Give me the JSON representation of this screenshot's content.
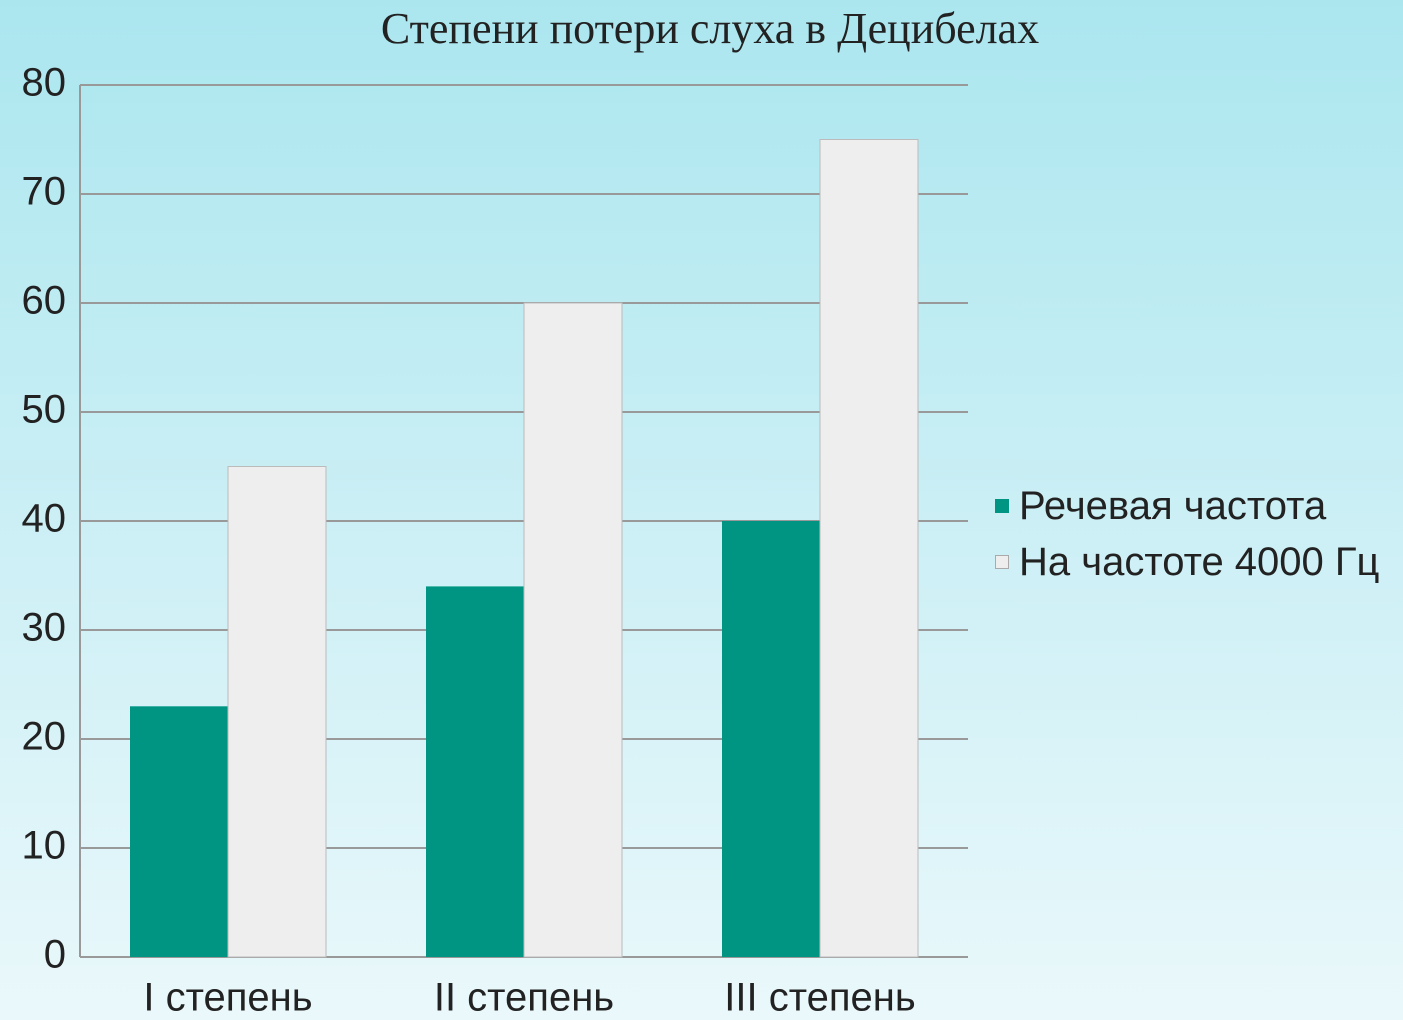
{
  "chart_data": {
    "type": "bar",
    "title": "Степени потери слуха  в Децибелах",
    "categories": [
      "I степень",
      "II степень",
      "III степень"
    ],
    "series": [
      {
        "name": "Речевая частота",
        "color": "#009583",
        "values": [
          23,
          34,
          40
        ]
      },
      {
        "name": "На частоте 4000 Гц",
        "color": "#eeeeee",
        "values": [
          45,
          60,
          75
        ]
      }
    ],
    "ylim": [
      0,
      80
    ],
    "yticks": [
      0,
      10,
      20,
      30,
      40,
      50,
      60,
      70,
      80
    ],
    "grid": true,
    "legend": "right"
  }
}
